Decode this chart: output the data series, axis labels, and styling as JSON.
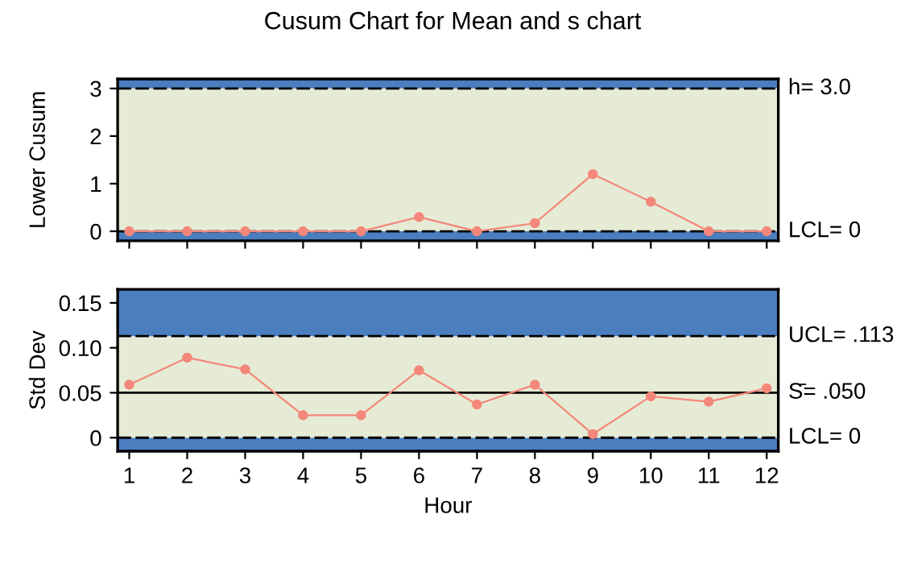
{
  "chart_data": [
    {
      "type": "line",
      "title": "Cusum Chart for Mean and s chart",
      "ylabel": "Lower Cusum",
      "x": [
        1,
        2,
        3,
        4,
        5,
        6,
        7,
        8,
        9,
        10,
        11,
        12
      ],
      "series": [
        {
          "color": "#f4877a",
          "values": [
            0,
            0,
            0,
            0,
            0,
            0.3,
            0,
            0.17,
            1.2,
            0.62,
            0,
            0
          ]
        }
      ],
      "marker": "circle",
      "xlim": [
        0.8,
        12.2
      ],
      "xticks": [
        1,
        2,
        3,
        4,
        5,
        6,
        7,
        8,
        9,
        10,
        11,
        12
      ],
      "ylim": [
        -0.2,
        3.2
      ],
      "yticks": [
        0,
        1,
        2,
        3
      ],
      "tick_labels": "y",
      "grid": false,
      "legend": false,
      "bands": [
        {
          "axis": "y",
          "from": -0.2,
          "to": 0,
          "color": "#4a7ebf"
        },
        {
          "axis": "y",
          "from": 0,
          "to": 3,
          "color": "#e6ebd5"
        },
        {
          "axis": "y",
          "from": 3,
          "to": 3.2,
          "color": "#4a7ebf"
        }
      ],
      "ref_lines": [
        {
          "axis": "y",
          "value": 3,
          "label": "h= 3.0",
          "line_style": "dashed",
          "color": "#000000"
        },
        {
          "axis": "y",
          "value": 0,
          "label": "LCL= 0",
          "line_style": "dashed",
          "color": "#000000"
        }
      ]
    },
    {
      "type": "line",
      "xlabel": "Hour",
      "ylabel": "Std Dev",
      "x": [
        1,
        2,
        3,
        4,
        5,
        6,
        7,
        8,
        9,
        10,
        11,
        12
      ],
      "series": [
        {
          "color": "#f4877a",
          "values": [
            0.059,
            0.089,
            0.076,
            0.025,
            0.025,
            0.075,
            0.037,
            0.059,
            0.004,
            0.046,
            0.04,
            0.055
          ]
        }
      ],
      "marker": "circle",
      "xlim": [
        0.8,
        12.2
      ],
      "xticks": [
        1,
        2,
        3,
        4,
        5,
        6,
        7,
        8,
        9,
        10,
        11,
        12
      ],
      "ylim": [
        -0.015,
        0.165
      ],
      "yticks": [
        {
          "value": 0,
          "label": "0"
        },
        {
          "value": 0.05,
          "label": "0.05"
        },
        {
          "value": 0.1,
          "label": "0.10"
        },
        {
          "value": 0.15,
          "label": "0.15"
        }
      ],
      "grid": false,
      "legend": false,
      "bands": [
        {
          "axis": "y",
          "from": -0.015,
          "to": 0,
          "color": "#4a7ebf"
        },
        {
          "axis": "y",
          "from": 0,
          "to": 0.113,
          "color": "#e6ebd5"
        },
        {
          "axis": "y",
          "from": 0.113,
          "to": 0.165,
          "color": "#4a7ebf"
        }
      ],
      "ref_lines": [
        {
          "axis": "y",
          "value": 0.113,
          "label": "UCL= .113",
          "line_style": "dashed",
          "color": "#000000"
        },
        {
          "axis": "y",
          "value": 0.05,
          "label": "S̄= .050",
          "line_style": "solid",
          "color": "#000000"
        },
        {
          "axis": "y",
          "value": 0,
          "label": "LCL= 0",
          "line_style": "dashed",
          "color": "#000000"
        }
      ]
    }
  ]
}
